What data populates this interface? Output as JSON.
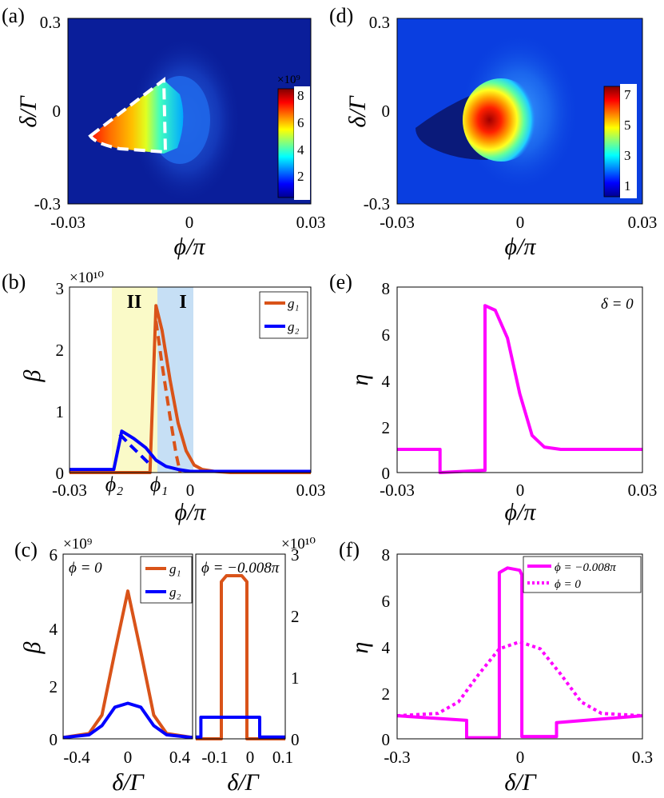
{
  "panels": {
    "a": {
      "label": "(a)",
      "xlabel": "ϕ/π",
      "ylabel": "δ/Γ",
      "xticks": [
        "-0.03",
        "0",
        "0.03"
      ],
      "yticks": [
        "0.3",
        "0",
        "-0.3"
      ],
      "colorbar_exp": "×10⁹",
      "colorbar_ticks": [
        "8",
        "6",
        "4",
        "2"
      ]
    },
    "d": {
      "label": "(d)",
      "xlabel": "ϕ/π",
      "ylabel": "δ/Γ",
      "xticks": [
        "-0.03",
        "0",
        "0.03"
      ],
      "yticks": [
        "0.3",
        "0",
        "-0.3"
      ],
      "colorbar_ticks": [
        "7",
        "5",
        "3",
        "1"
      ]
    },
    "b": {
      "label": "(b)",
      "xlabel": "ϕ/π",
      "ylabel": "β",
      "mult": "×10¹⁰",
      "xticks": [
        "-0.03",
        "0",
        "0.03"
      ],
      "yticks": [
        "0",
        "1",
        "2",
        "3"
      ],
      "region_I": "I",
      "region_II": "II",
      "phi1": "ϕ₁",
      "phi2": "ϕ₂",
      "legend": [
        "g₁",
        "g₂"
      ]
    },
    "c": {
      "label": "(c)",
      "xlabel": "δ/Γ",
      "ylabel": "β",
      "mult_left": "×10⁹",
      "mult_right": "×10¹⁰",
      "left_annot": "ϕ = 0",
      "right_annot": "ϕ = −0.008π",
      "left_xticks": [
        "-0.4",
        "-0.2",
        "0",
        "0.2",
        "0.4"
      ],
      "left_xticks_shown": [
        "-0.4",
        "0",
        "0.4"
      ],
      "left_yticks": [
        "0",
        "2",
        "4",
        "6"
      ],
      "right_xticks": [
        "-0.1",
        "0",
        "0.1"
      ],
      "right_yticks": [
        "0",
        "1",
        "2",
        "3"
      ],
      "legend": [
        "g₁",
        "g₂"
      ]
    },
    "e": {
      "label": "(e)",
      "xlabel": "ϕ/π",
      "ylabel": "η",
      "xticks": [
        "-0.03",
        "0",
        "0.03"
      ],
      "yticks": [
        "0",
        "2",
        "4",
        "6",
        "8"
      ],
      "annot": "δ = 0"
    },
    "f": {
      "label": "(f)",
      "xlabel": "δ/Γ",
      "ylabel": "η",
      "xticks": [
        "-0.3",
        "0",
        "0.3"
      ],
      "yticks": [
        "0",
        "2",
        "4",
        "6",
        "8"
      ],
      "legend": [
        "ϕ = −0.008π",
        "ϕ = 0"
      ]
    }
  },
  "colors": {
    "g1": "#d95319",
    "g2": "#0000ff",
    "eta": "#ff00ff",
    "regionI": "#c6dff5",
    "regionII": "#fafac8",
    "mapbg": "#0a1e9a"
  },
  "chart_data": [
    {
      "type": "heatmap",
      "panel": "a",
      "xlim": [
        -0.03,
        0.03
      ],
      "ylim": [
        -0.3,
        0.3
      ],
      "colorbar": {
        "min": 0,
        "max": 8000000000.0
      },
      "peak": {
        "x": -0.02,
        "y": -0.05,
        "value": 8000000000.0
      }
    },
    {
      "type": "heatmap",
      "panel": "d",
      "xlim": [
        -0.03,
        0.03
      ],
      "ylim": [
        -0.3,
        0.3
      ],
      "colorbar": {
        "min": 0,
        "max": 7.5
      },
      "peak": {
        "x": -0.006,
        "y": 0,
        "value": 7.3
      }
    },
    {
      "type": "line",
      "panel": "b",
      "xlim": [
        -0.03,
        0.03
      ],
      "ylim": [
        0,
        30000000000.0
      ],
      "regions": [
        {
          "name": "II",
          "x": [
            -0.019,
            -0.0085
          ]
        },
        {
          "name": "I",
          "x": [
            -0.0085,
            -0.0012
          ]
        }
      ],
      "series": [
        {
          "name": "g₁",
          "style": "solid",
          "x": [
            -0.03,
            -0.01,
            -0.0085,
            -0.007,
            -0.005,
            -0.003,
            -0.001,
            0.001,
            0.003,
            0.006,
            0.01,
            0.03
          ],
          "y": [
            0,
            0,
            27000000000.0,
            23000000000.0,
            15000000000.0,
            8000000000.0,
            3500000000.0,
            1200000000.0,
            500000000.0,
            200000000.0,
            0,
            0
          ]
        },
        {
          "name": "g₁ (dashed)",
          "style": "dashed",
          "x": [
            -0.0085,
            -0.007,
            -0.005,
            -0.0035,
            -0.0025
          ],
          "y": [
            24500000000.0,
            17500000000.0,
            9000000000.0,
            3000000000.0,
            0
          ]
        },
        {
          "name": "g₂",
          "style": "solid",
          "x": [
            -0.03,
            -0.019,
            -0.017,
            -0.014,
            -0.011,
            -0.0085,
            -0.006,
            -0.003,
            0,
            0.03
          ],
          "y": [
            500000000.0,
            500000000.0,
            6700000000.0,
            5500000000.0,
            4000000000.0,
            2000000000.0,
            1000000000.0,
            500000000.0,
            200000000.0,
            200000000.0
          ]
        },
        {
          "name": "g₂ (dashed)",
          "style": "dashed",
          "x": [
            -0.0175,
            -0.015,
            -0.012,
            -0.0095
          ],
          "y": [
            6200000000.0,
            4500000000.0,
            2600000000.0,
            1000000000.0
          ]
        }
      ]
    },
    {
      "type": "line",
      "panel": "c-left",
      "xlim": [
        -0.5,
        0.5
      ],
      "ylim": [
        0,
        7000000000.0
      ],
      "series": [
        {
          "name": "g₁",
          "x": [
            -0.5,
            -0.3,
            -0.2,
            -0.1,
            0,
            0.1,
            0.2,
            0.3,
            0.5
          ],
          "y": [
            50000000.0,
            200000000.0,
            900000000.0,
            3300000000.0,
            5600000000.0,
            3300000000.0,
            900000000.0,
            200000000.0,
            50000000.0
          ]
        },
        {
          "name": "g₂",
          "x": [
            -0.5,
            -0.3,
            -0.2,
            -0.1,
            0,
            0.1,
            0.2,
            0.3,
            0.5
          ],
          "y": [
            50000000.0,
            150000000.0,
            500000000.0,
            1200000000.0,
            1350000000.0,
            1200000000.0,
            500000000.0,
            150000000.0,
            50000000.0
          ]
        }
      ]
    },
    {
      "type": "line",
      "panel": "c-right",
      "xlim": [
        -0.15,
        0.2
      ],
      "ylim": [
        0,
        30000000000.0
      ],
      "series": [
        {
          "name": "g₁",
          "x": [
            -0.15,
            -0.05,
            -0.05,
            -0.03,
            0,
            0.03,
            0.05,
            0.05,
            0.2
          ],
          "y": [
            0,
            0,
            25500000000.0,
            26500000000.0,
            26500000000.0,
            26500000000.0,
            25500000000.0,
            0,
            0
          ]
        },
        {
          "name": "g₂",
          "x": [
            -0.15,
            -0.13,
            -0.13,
            0.1,
            0.1,
            0.2
          ],
          "y": [
            300000000.0,
            300000000.0,
            3500000000.0,
            3500000000.0,
            300000000.0,
            300000000.0
          ]
        }
      ]
    },
    {
      "type": "line",
      "panel": "e",
      "xlim": [
        -0.03,
        0.03
      ],
      "ylim": [
        0,
        8
      ],
      "series": [
        {
          "name": "η",
          "x": [
            -0.03,
            -0.0195,
            -0.0195,
            -0.0085,
            -0.0085,
            -0.006,
            -0.003,
            0,
            0.003,
            0.006,
            0.01,
            0.03
          ],
          "y": [
            1,
            1,
            0,
            0.1,
            7.2,
            7.0,
            5.8,
            3.4,
            1.6,
            1.1,
            1.0,
            1.0
          ]
        }
      ]
    },
    {
      "type": "line",
      "panel": "f",
      "xlim": [
        -0.3,
        0.3
      ],
      "ylim": [
        0,
        8
      ],
      "series": [
        {
          "name": "ϕ = −0.008π",
          "style": "solid",
          "x": [
            -0.3,
            -0.13,
            -0.13,
            -0.05,
            -0.05,
            -0.03,
            0,
            0.005,
            0.005,
            0.09,
            0.09,
            0.3
          ],
          "y": [
            1.0,
            0.8,
            0.05,
            0.05,
            7.2,
            7.4,
            7.3,
            7.1,
            0.1,
            0.1,
            0.7,
            1.0
          ]
        },
        {
          "name": "ϕ = 0",
          "style": "dotted",
          "x": [
            -0.3,
            -0.2,
            -0.15,
            -0.1,
            -0.05,
            0,
            0.05,
            0.1,
            0.15,
            0.2,
            0.3
          ],
          "y": [
            1.0,
            1.1,
            1.6,
            2.8,
            3.9,
            4.2,
            3.9,
            2.8,
            1.6,
            1.1,
            1.0
          ]
        }
      ]
    }
  ]
}
